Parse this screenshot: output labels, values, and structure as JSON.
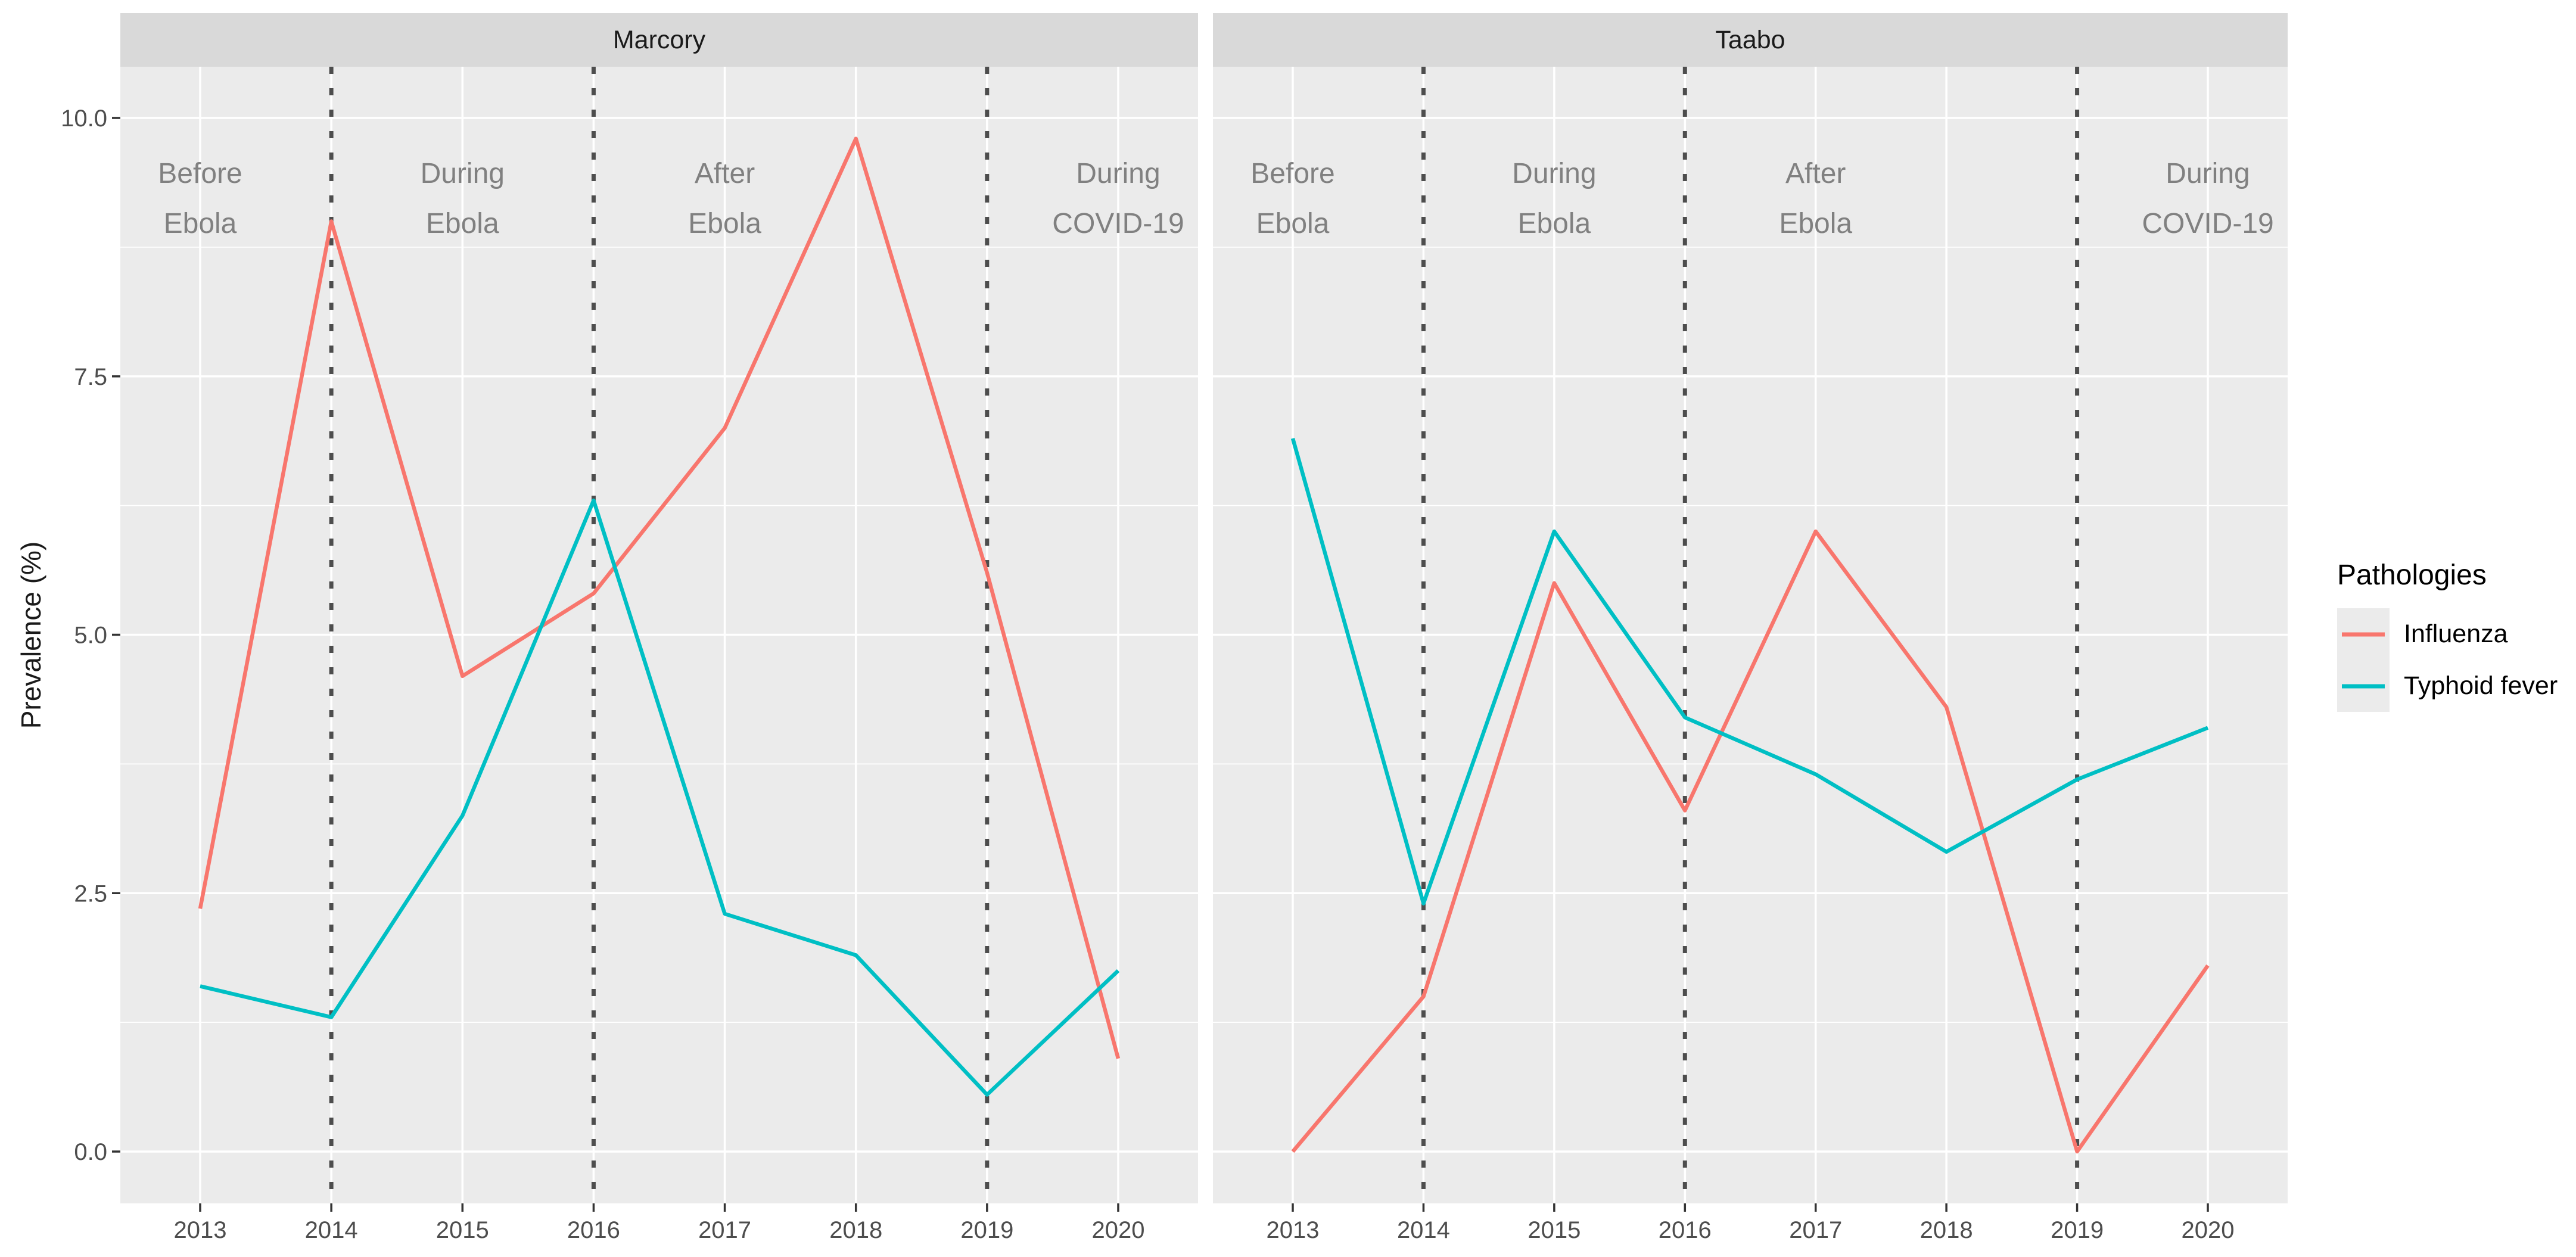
{
  "chart_data": {
    "type": "line",
    "facets": [
      {
        "title": "Marcory",
        "x": [
          2013,
          2014,
          2015,
          2016,
          2017,
          2018,
          2019,
          2020
        ],
        "series": [
          {
            "name": "Influenza",
            "color": "#F8766D",
            "values": [
              2.35,
              9.0,
              4.6,
              5.4,
              7.0,
              9.8,
              5.6,
              0.9
            ]
          },
          {
            "name": "Typhoid fever",
            "color": "#00BFC4",
            "values": [
              1.6,
              1.3,
              3.25,
              6.3,
              2.3,
              1.9,
              0.55,
              1.75
            ]
          }
        ]
      },
      {
        "title": "Taabo",
        "x": [
          2013,
          2014,
          2015,
          2016,
          2017,
          2018,
          2019,
          2020
        ],
        "series": [
          {
            "name": "Influenza",
            "color": "#F8766D",
            "values": [
              0.0,
              1.5,
              5.5,
              3.3,
              6.0,
              4.3,
              0.0,
              1.8
            ]
          },
          {
            "name": "Typhoid fever",
            "color": "#00BFC4",
            "values": [
              6.9,
              2.4,
              6.0,
              4.2,
              3.65,
              2.9,
              3.6,
              4.1
            ]
          }
        ]
      }
    ],
    "xlabel": "",
    "ylabel": "Prevalence (%)",
    "x_tick_labels": [
      "2013",
      "2014",
      "2015",
      "2016",
      "2017",
      "2018",
      "2019",
      "2020"
    ],
    "ytick_labels": [
      "0.0",
      "2.5",
      "5.0",
      "7.5",
      "10.0"
    ],
    "ytick_values": [
      0,
      2.5,
      5,
      7.5,
      10
    ],
    "y_minor_values": [
      1.25,
      3.75,
      6.25,
      8.75
    ],
    "ylim": [
      -0.5,
      10.5
    ],
    "grid": "on",
    "vlines": [
      2014,
      2016,
      2019
    ],
    "period_labels": [
      {
        "line1": "Before",
        "line2": "Ebola",
        "x": 2013
      },
      {
        "line1": "During",
        "line2": "Ebola",
        "x": 2015
      },
      {
        "line1": "After",
        "line2": "Ebola",
        "x": 2017
      },
      {
        "line1": "During",
        "line2": "COVID-19",
        "x": 2020
      }
    ],
    "legend": {
      "title": "Pathologies",
      "position": "right",
      "entries": [
        {
          "label": "Influenza",
          "color": "#F8766D"
        },
        {
          "label": "Typhoid fever",
          "color": "#00BFC4"
        }
      ]
    },
    "colors": {
      "panel_bg": "#EBEBEB",
      "strip_bg": "#D9D9D9",
      "grid": "#FFFFFF",
      "vline": "#4D4D4D",
      "tick_text": "#4D4D4D",
      "axis_tick": "#333333",
      "period_text": "#808080",
      "strip_text": "#1A1A1A"
    }
  }
}
